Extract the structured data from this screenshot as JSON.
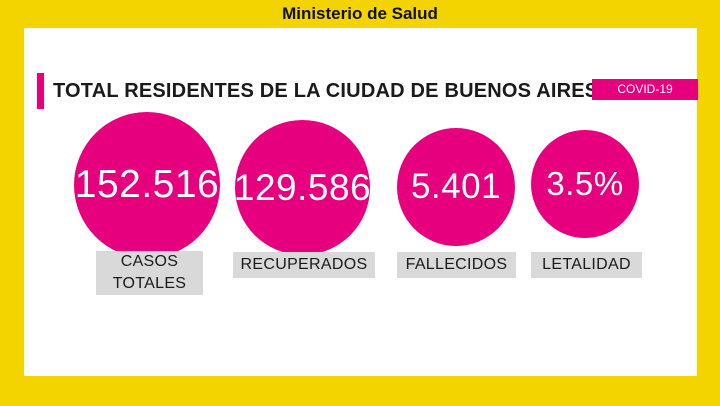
{
  "header": {
    "title": "Ministerio de Salud"
  },
  "main": {
    "title": "TOTAL RESIDENTES DE LA CIUDAD DE BUENOS AIRES"
  },
  "tag": {
    "label": "COVID-19"
  },
  "stats": [
    {
      "value": "152.516",
      "label": "CASOS TOTALES"
    },
    {
      "value": "129.586",
      "label": "RECUPERADOS"
    },
    {
      "value": "5.401",
      "label": "FALLECIDOS"
    },
    {
      "value": "3.5%",
      "label": "LETALIDAD"
    }
  ],
  "colors": {
    "brand": "#e6007e",
    "background": "#f4d400",
    "label_bg": "#d9d9d9"
  }
}
